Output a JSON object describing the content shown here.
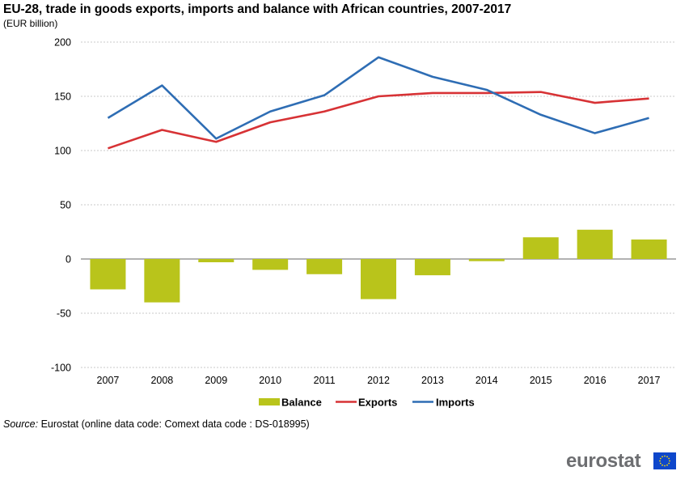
{
  "header": {
    "title": "EU-28, trade in goods exports, imports and balance with African countries, 2007-2017",
    "unit": "(EUR billion)"
  },
  "source": {
    "label": "Source:",
    "text": "Eurostat (online data code: Comext data code : DS-018995)"
  },
  "logo": {
    "text": "eurostat"
  },
  "chart_data": {
    "type": "bar+line",
    "categories": [
      "2007",
      "2008",
      "2009",
      "2010",
      "2011",
      "2012",
      "2013",
      "2014",
      "2015",
      "2016",
      "2017"
    ],
    "ylim": [
      -100,
      200
    ],
    "yticks": [
      -100,
      -50,
      0,
      50,
      100,
      150,
      200
    ],
    "grid": true,
    "legend_position": "bottom",
    "series": [
      {
        "name": "Balance",
        "type": "bar",
        "color": "#b9c41b",
        "values": [
          -28,
          -40,
          -3,
          -10,
          -14,
          -37,
          -15,
          -2,
          20,
          27,
          18
        ]
      },
      {
        "name": "Exports",
        "type": "line",
        "color": "#d73235",
        "values": [
          102,
          119,
          108,
          126,
          136,
          150,
          153,
          153,
          154,
          144,
          148
        ]
      },
      {
        "name": "Imports",
        "type": "line",
        "color": "#2e6db4",
        "values": [
          130,
          160,
          111,
          136,
          151,
          186,
          168,
          156,
          133,
          116,
          130
        ]
      }
    ]
  }
}
